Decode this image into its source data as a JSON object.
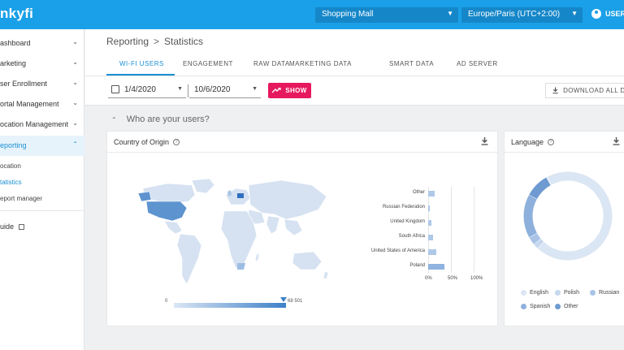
{
  "topbar": {
    "logo": "nkyfi",
    "venue_select": "Shopping Mall",
    "timezone_select": "Europe/Paris (UTC+2:00)",
    "user_label": "USERN"
  },
  "sidebar": {
    "items": [
      {
        "label": "ashboard"
      },
      {
        "label": "arketing"
      },
      {
        "label": "ser Enrollment"
      },
      {
        "label": "ortal Management"
      },
      {
        "label": "ocation Management"
      },
      {
        "label": "eporting"
      }
    ],
    "sub_items": [
      {
        "label": "ocation"
      },
      {
        "label": "tatistics"
      },
      {
        "label": "eport manager"
      }
    ],
    "guide_label": "uide"
  },
  "header": {
    "breadcrumb_root": "Reporting",
    "breadcrumb_sep": ">",
    "breadcrumb_current": "Statistics",
    "tabs": [
      {
        "label": "WI-FI USERS"
      },
      {
        "label": "ENGAGEMENT"
      },
      {
        "label": "RAW DATA"
      },
      {
        "label": "MARKETING DATA"
      },
      {
        "label": "SMART DATA"
      },
      {
        "label": "AD SERVER"
      }
    ]
  },
  "filters": {
    "date_from": "1/4/2020",
    "date_to": "10/6/2020",
    "show_label": "SHOW",
    "download_label": "DOWNLOAD ALL DAT"
  },
  "section": {
    "title": "Who are your users?"
  },
  "country_card": {
    "title": "Country of Origin",
    "map_legend_min": "0",
    "map_legend_max": "68 501"
  },
  "language_card": {
    "title": "Language",
    "legend": [
      {
        "label": "English",
        "color": "#dbe6f4"
      },
      {
        "label": "Polish",
        "color": "#c6d8ef"
      },
      {
        "label": "Russian",
        "color": "#a9c3e6"
      },
      {
        "label": "Spanish",
        "color": "#8db0dc"
      },
      {
        "label": "Other",
        "color": "#6e9ad1"
      }
    ]
  },
  "chart_data": [
    {
      "type": "bar",
      "orientation": "horizontal",
      "categories": [
        "Other",
        "Russian Federation",
        "United Kingdom",
        "South Africa",
        "United States of America",
        "Poland"
      ],
      "values": [
        15,
        2,
        8,
        11,
        18,
        35
      ],
      "xlim": [
        0,
        100
      ],
      "xticks": [
        "0%",
        "50%",
        "100%"
      ]
    },
    {
      "type": "pie",
      "donut": true,
      "categories": [
        "English",
        "Polish",
        "Russian",
        "Spanish",
        "Other"
      ],
      "values": [
        70,
        2,
        3,
        16,
        9
      ]
    }
  ]
}
